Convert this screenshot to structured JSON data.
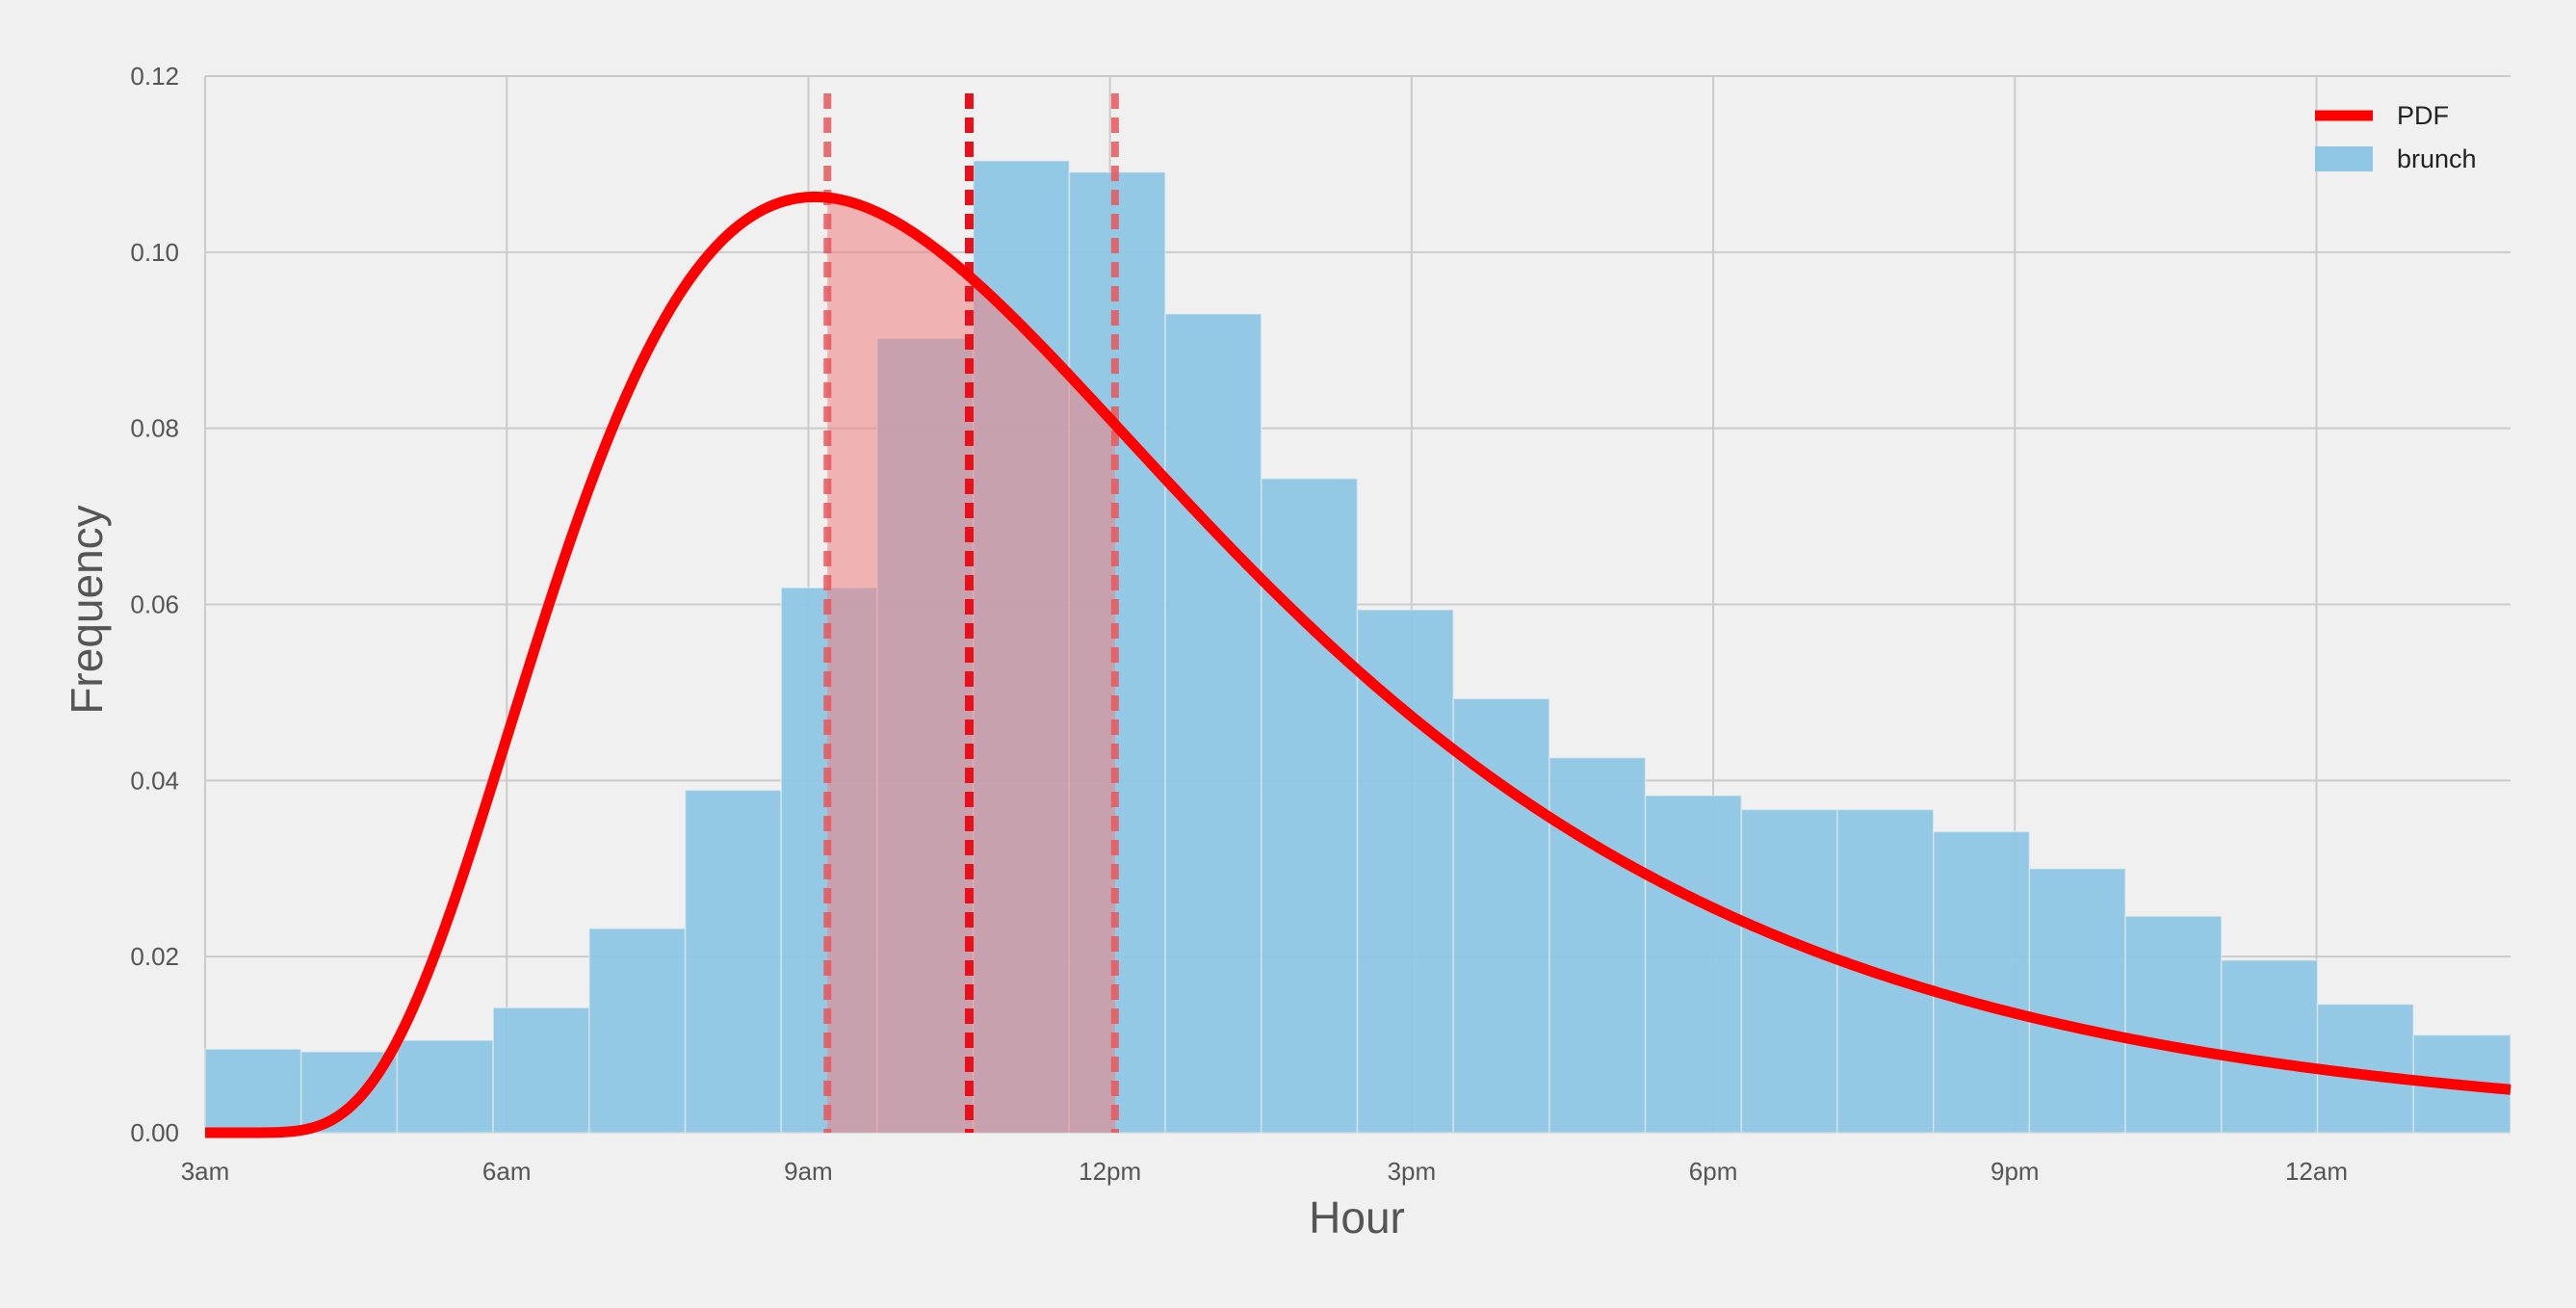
{
  "chart_data": {
    "type": "bar",
    "xlabel": "Hour",
    "ylabel": "Frequency",
    "x_ticks": [
      {
        "value": 3,
        "label": "3am"
      },
      {
        "value": 6,
        "label": "6am"
      },
      {
        "value": 9,
        "label": "9am"
      },
      {
        "value": 12,
        "label": "12pm"
      },
      {
        "value": 15,
        "label": "3pm"
      },
      {
        "value": 18,
        "label": "6pm"
      },
      {
        "value": 21,
        "label": "9pm"
      },
      {
        "value": 24,
        "label": "12am"
      }
    ],
    "y_ticks": [
      {
        "value": 0.0,
        "label": "0.00"
      },
      {
        "value": 0.02,
        "label": "0.02"
      },
      {
        "value": 0.04,
        "label": "0.04"
      },
      {
        "value": 0.06,
        "label": "0.06"
      },
      {
        "value": 0.08,
        "label": "0.08"
      },
      {
        "value": 0.1,
        "label": "0.10"
      },
      {
        "value": 0.12,
        "label": "0.12"
      }
    ],
    "xlim": [
      3,
      25.93
    ],
    "ylim": [
      0,
      0.12
    ],
    "grid": true,
    "legend_position": "top-right",
    "histogram": {
      "name": "brunch",
      "color": "#8ec6e4",
      "bin_edges": [
        3.0,
        3.955,
        4.91,
        5.865,
        6.82,
        7.775,
        8.73,
        9.685,
        10.64,
        11.595,
        12.55,
        13.505,
        14.46,
        15.415,
        16.37,
        17.325,
        18.28,
        19.235,
        20.19,
        21.145,
        22.1,
        23.055,
        24.01,
        24.965,
        25.93
      ],
      "values": [
        0.0095,
        0.0092,
        0.0105,
        0.0142,
        0.0232,
        0.0389,
        0.0619,
        0.0902,
        0.1104,
        0.1091,
        0.093,
        0.0743,
        0.0594,
        0.0493,
        0.0426,
        0.0383,
        0.0367,
        0.0367,
        0.0342,
        0.03,
        0.0246,
        0.0196,
        0.0146,
        0.0111
      ]
    },
    "pdf": {
      "name": "PDF",
      "color": "#ff0000",
      "lognormal": {
        "shift": 3.0,
        "mu": 2.09,
        "sigma": 0.536
      }
    },
    "shaded_interval": {
      "from": 9.19,
      "to": 12.05,
      "color": "#f08080"
    },
    "vlines": [
      {
        "x": 9.19,
        "color": "#e8565b",
        "style": "dashed"
      },
      {
        "x": 10.6,
        "color": "#e8101a",
        "style": "dashed"
      },
      {
        "x": 12.05,
        "color": "#e8565b",
        "style": "dashed"
      }
    ],
    "legend": [
      {
        "label": "PDF",
        "kind": "line",
        "color": "#ff0000"
      },
      {
        "label": "brunch",
        "kind": "patch",
        "color": "#8ec6e4"
      }
    ]
  }
}
